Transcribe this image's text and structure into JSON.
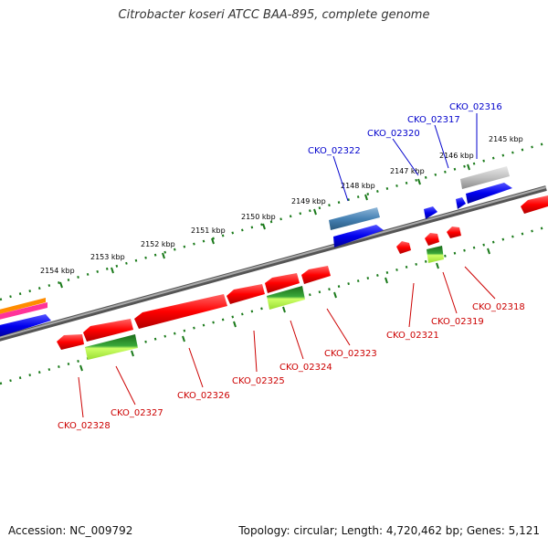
{
  "title": "Citrobacter koseri ATCC BAA-895, complete genome",
  "footer": {
    "accession": "Accession: NC_009792",
    "topology": "Topology: circular; Length: 4,720,462 bp; Genes: 5,121"
  },
  "kbp_labels": [
    "2145 kbp",
    "2146 kbp",
    "2147 kbp",
    "2148 kbp",
    "2149 kbp",
    "2150 kbp",
    "2151 kbp",
    "2152 kbp",
    "2153 kbp",
    "2154 kbp"
  ],
  "upper_gene_labels": [
    "CKO_02316",
    "CKO_02317",
    "CKO_02320",
    "CKO_02322"
  ],
  "lower_gene_labels": [
    "CKO_02318",
    "CKO_02319",
    "CKO_02321",
    "CKO_02323",
    "CKO_02324",
    "CKO_02325",
    "CKO_02326",
    "CKO_02327",
    "CKO_02328"
  ],
  "colors": {
    "backbone": "#808080",
    "tick": "#1a7a1a",
    "upper_label": "#0000cc",
    "lower_label": "#cc0000",
    "gene_red": "#ff0000",
    "gene_blue": "#0000ee",
    "gene_green": "#2e8b2e",
    "gene_gray": "#c0c0c0",
    "gene_steelblue": "#4682b4",
    "gene_orange": "#ff8c00",
    "gene_pink": "#ff3399"
  }
}
